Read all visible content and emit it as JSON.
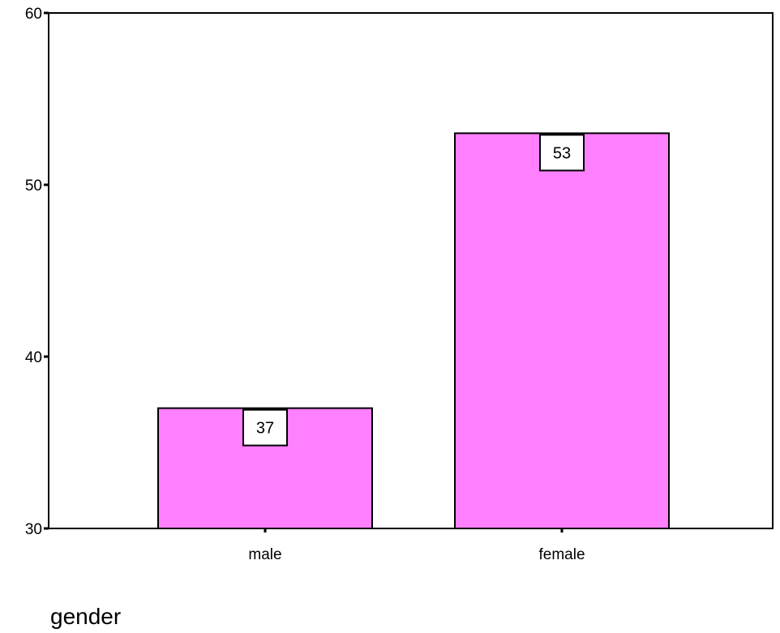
{
  "chart_data": {
    "type": "bar",
    "title": "",
    "xlabel": "gender",
    "ylabel": "",
    "categories": [
      "male",
      "female"
    ],
    "values": [
      37,
      53
    ],
    "data_labels": [
      "37",
      "53"
    ],
    "ylim": [
      30,
      60
    ],
    "yticks": [
      30,
      40,
      50,
      60
    ],
    "ytick_labels": [
      "30",
      "40",
      "50",
      "60"
    ],
    "grid": false,
    "legend": "none",
    "colors": {
      "bar_fill": "#ff80ff",
      "bar_stroke": "#000000",
      "axis": "#000000",
      "label_box_fill": "#ffffff"
    }
  }
}
